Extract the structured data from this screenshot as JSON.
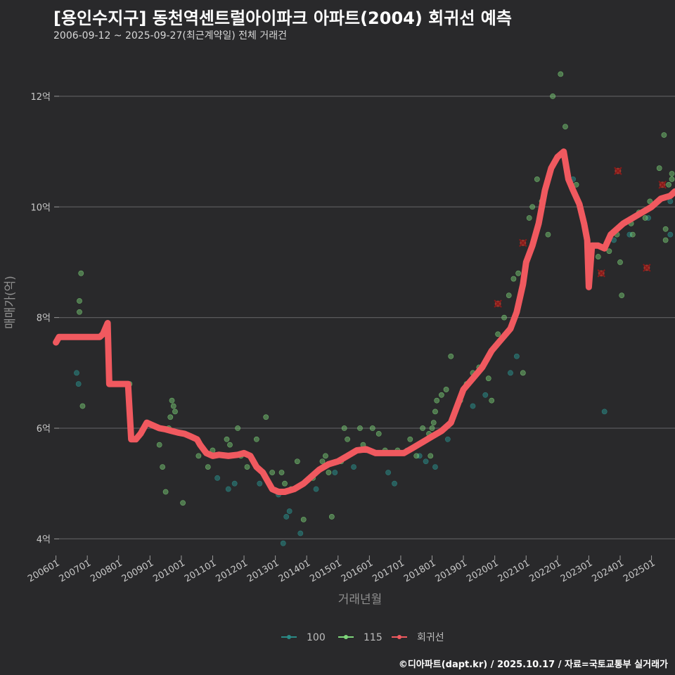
{
  "chart_data": {
    "type": "scatter",
    "title": "[용인수지구] 동천역센트럴아이파크 아파트(2004) 회귀선 예측",
    "subtitle": "2006-09-12 ~ 2025-09-27(최근계약일) 전체 거래건",
    "xlabel": "거래년월",
    "ylabel": "매매가(억)",
    "ylim": [
      3.7,
      12.85
    ],
    "xlim": [
      2005.92,
      2025.75
    ],
    "y_ticks": [
      4,
      6,
      8,
      10,
      12
    ],
    "y_tick_labels": [
      "4억",
      "6억",
      "8억",
      "10억",
      "12억"
    ],
    "x_ticks": [
      2006,
      2007,
      2008,
      2009,
      2010,
      2011,
      2012,
      2013,
      2014,
      2015,
      2016,
      2017,
      2018,
      2019,
      2020,
      2021,
      2022,
      2023,
      2024,
      2025
    ],
    "x_tick_labels": [
      "200601",
      "200701",
      "200801",
      "200901",
      "201001",
      "201101",
      "201201",
      "201301",
      "201401",
      "201501",
      "201601",
      "201701",
      "201801",
      "201901",
      "202001",
      "202101",
      "202201",
      "202301",
      "202401",
      "202501"
    ],
    "grid": true,
    "legend_position": "bottom",
    "colors": {
      "s100": "#2a8a86",
      "s115": "#7ed67a",
      "regression": "#f0595f",
      "outlier": "#8b1a1a"
    },
    "series": [
      {
        "name": "100",
        "type": "scatter",
        "points": [
          [
            2006.66,
            7.0
          ],
          [
            2006.72,
            6.8
          ],
          [
            2011.15,
            5.1
          ],
          [
            2011.5,
            4.9
          ],
          [
            2011.7,
            5.0
          ],
          [
            2012.5,
            5.0
          ],
          [
            2013.1,
            4.8
          ],
          [
            2013.35,
            4.4
          ],
          [
            2013.45,
            4.5
          ],
          [
            2013.25,
            3.92
          ],
          [
            2013.8,
            4.1
          ],
          [
            2014.3,
            4.9
          ],
          [
            2014.9,
            5.2
          ],
          [
            2015.5,
            5.3
          ],
          [
            2015.9,
            5.6
          ],
          [
            2016.6,
            5.2
          ],
          [
            2016.8,
            5.0
          ],
          [
            2017.2,
            5.6
          ],
          [
            2017.6,
            5.5
          ],
          [
            2017.8,
            5.4
          ],
          [
            2018.1,
            5.3
          ],
          [
            2018.5,
            5.8
          ],
          [
            2019.3,
            6.4
          ],
          [
            2019.7,
            6.6
          ],
          [
            2020.5,
            7.0
          ],
          [
            2020.7,
            7.3
          ],
          [
            2022.5,
            10.5
          ],
          [
            2023.5,
            6.3
          ],
          [
            2023.8,
            9.4
          ],
          [
            2024.3,
            9.5
          ],
          [
            2024.9,
            9.8
          ],
          [
            2025.6,
            9.5
          ],
          [
            2025.6,
            10.1
          ]
        ]
      },
      {
        "name": "115",
        "type": "scatter",
        "points": [
          [
            2006.8,
            8.8
          ],
          [
            2006.75,
            8.3
          ],
          [
            2006.75,
            8.1
          ],
          [
            2006.85,
            6.4
          ],
          [
            2008.35,
            6.8
          ],
          [
            2009.3,
            5.7
          ],
          [
            2009.4,
            5.3
          ],
          [
            2009.5,
            4.85
          ],
          [
            2009.65,
            6.2
          ],
          [
            2009.7,
            6.5
          ],
          [
            2009.75,
            6.4
          ],
          [
            2009.8,
            6.3
          ],
          [
            2009.6,
            6.0
          ],
          [
            2010.05,
            4.65
          ],
          [
            2010.55,
            5.5
          ],
          [
            2010.85,
            5.3
          ],
          [
            2011.0,
            5.6
          ],
          [
            2011.45,
            5.8
          ],
          [
            2011.55,
            5.7
          ],
          [
            2011.8,
            6.0
          ],
          [
            2011.9,
            5.5
          ],
          [
            2012.1,
            5.3
          ],
          [
            2012.4,
            5.8
          ],
          [
            2012.7,
            6.2
          ],
          [
            2012.9,
            5.2
          ],
          [
            2013.2,
            5.2
          ],
          [
            2013.3,
            5.0
          ],
          [
            2013.5,
            4.9
          ],
          [
            2013.7,
            5.4
          ],
          [
            2013.9,
            4.35
          ],
          [
            2014.2,
            5.1
          ],
          [
            2014.5,
            5.4
          ],
          [
            2014.6,
            5.5
          ],
          [
            2014.7,
            5.2
          ],
          [
            2014.8,
            4.4
          ],
          [
            2015.1,
            5.4
          ],
          [
            2015.2,
            6.0
          ],
          [
            2015.3,
            5.8
          ],
          [
            2015.7,
            6.0
          ],
          [
            2015.8,
            5.7
          ],
          [
            2016.1,
            6.0
          ],
          [
            2016.3,
            5.9
          ],
          [
            2016.5,
            5.6
          ],
          [
            2016.9,
            5.6
          ],
          [
            2017.3,
            5.8
          ],
          [
            2017.5,
            5.5
          ],
          [
            2017.7,
            6.0
          ],
          [
            2017.9,
            5.9
          ],
          [
            2017.95,
            5.5
          ],
          [
            2018.0,
            6.0
          ],
          [
            2018.05,
            6.1
          ],
          [
            2018.1,
            6.3
          ],
          [
            2018.15,
            6.5
          ],
          [
            2018.3,
            6.6
          ],
          [
            2018.45,
            6.7
          ],
          [
            2018.6,
            7.3
          ],
          [
            2018.9,
            6.5
          ],
          [
            2019.1,
            6.8
          ],
          [
            2019.3,
            7.0
          ],
          [
            2019.5,
            7.1
          ],
          [
            2019.8,
            6.9
          ],
          [
            2019.9,
            6.5
          ],
          [
            2020.1,
            7.7
          ],
          [
            2020.3,
            8.0
          ],
          [
            2020.45,
            8.4
          ],
          [
            2020.6,
            8.7
          ],
          [
            2020.75,
            8.8
          ],
          [
            2020.85,
            8.5
          ],
          [
            2020.9,
            7.0
          ],
          [
            2021.1,
            9.8
          ],
          [
            2021.2,
            10.0
          ],
          [
            2021.35,
            10.5
          ],
          [
            2021.5,
            10.1
          ],
          [
            2021.7,
            9.5
          ],
          [
            2021.85,
            12.0
          ],
          [
            2022.1,
            12.4
          ],
          [
            2022.25,
            11.45
          ],
          [
            2022.6,
            10.4
          ],
          [
            2023.3,
            9.1
          ],
          [
            2023.65,
            9.2
          ],
          [
            2023.9,
            9.5
          ],
          [
            2024.0,
            9.0
          ],
          [
            2024.05,
            8.4
          ],
          [
            2024.35,
            9.7
          ],
          [
            2024.4,
            9.5
          ],
          [
            2024.6,
            9.9
          ],
          [
            2024.8,
            9.8
          ],
          [
            2024.95,
            10.1
          ],
          [
            2025.25,
            10.7
          ],
          [
            2025.4,
            11.3
          ],
          [
            2025.45,
            9.6
          ],
          [
            2025.45,
            9.4
          ],
          [
            2025.65,
            10.6
          ],
          [
            2025.65,
            10.5
          ],
          [
            2025.55,
            10.4
          ]
        ]
      },
      {
        "name": "회귀선",
        "type": "line",
        "points": [
          [
            2006.0,
            7.55
          ],
          [
            2006.1,
            7.65
          ],
          [
            2007.0,
            7.65
          ],
          [
            2007.4,
            7.65
          ],
          [
            2007.5,
            7.7
          ],
          [
            2007.65,
            7.9
          ],
          [
            2007.7,
            6.8
          ],
          [
            2008.0,
            6.8
          ],
          [
            2008.3,
            6.8
          ],
          [
            2008.4,
            5.8
          ],
          [
            2008.55,
            5.8
          ],
          [
            2008.7,
            5.9
          ],
          [
            2008.9,
            6.1
          ],
          [
            2009.1,
            6.05
          ],
          [
            2009.3,
            6.0
          ],
          [
            2009.5,
            5.98
          ],
          [
            2009.7,
            5.95
          ],
          [
            2009.9,
            5.92
          ],
          [
            2010.1,
            5.9
          ],
          [
            2010.3,
            5.85
          ],
          [
            2010.5,
            5.8
          ],
          [
            2010.6,
            5.7
          ],
          [
            2010.8,
            5.55
          ],
          [
            2011.0,
            5.5
          ],
          [
            2011.2,
            5.52
          ],
          [
            2011.5,
            5.5
          ],
          [
            2011.8,
            5.52
          ],
          [
            2012.0,
            5.55
          ],
          [
            2012.2,
            5.5
          ],
          [
            2012.4,
            5.3
          ],
          [
            2012.6,
            5.2
          ],
          [
            2012.8,
            5.0
          ],
          [
            2012.9,
            4.9
          ],
          [
            2013.1,
            4.85
          ],
          [
            2013.3,
            4.85
          ],
          [
            2013.6,
            4.9
          ],
          [
            2013.9,
            5.0
          ],
          [
            2014.1,
            5.1
          ],
          [
            2014.4,
            5.25
          ],
          [
            2014.7,
            5.35
          ],
          [
            2015.0,
            5.4
          ],
          [
            2015.3,
            5.5
          ],
          [
            2015.6,
            5.6
          ],
          [
            2015.9,
            5.62
          ],
          [
            2016.2,
            5.55
          ],
          [
            2016.5,
            5.55
          ],
          [
            2016.8,
            5.55
          ],
          [
            2017.1,
            5.55
          ],
          [
            2017.4,
            5.65
          ],
          [
            2017.7,
            5.75
          ],
          [
            2018.0,
            5.85
          ],
          [
            2018.3,
            5.95
          ],
          [
            2018.6,
            6.1
          ],
          [
            2018.8,
            6.4
          ],
          [
            2019.0,
            6.7
          ],
          [
            2019.3,
            6.9
          ],
          [
            2019.6,
            7.1
          ],
          [
            2019.9,
            7.4
          ],
          [
            2020.2,
            7.6
          ],
          [
            2020.5,
            7.8
          ],
          [
            2020.7,
            8.1
          ],
          [
            2020.9,
            8.6
          ],
          [
            2021.0,
            9.0
          ],
          [
            2021.2,
            9.3
          ],
          [
            2021.4,
            9.7
          ],
          [
            2021.6,
            10.3
          ],
          [
            2021.8,
            10.7
          ],
          [
            2022.0,
            10.9
          ],
          [
            2022.2,
            11.0
          ],
          [
            2022.35,
            10.5
          ],
          [
            2022.5,
            10.3
          ],
          [
            2022.7,
            10.05
          ],
          [
            2022.85,
            9.7
          ],
          [
            2022.95,
            9.4
          ],
          [
            2023.0,
            8.55
          ],
          [
            2023.1,
            9.3
          ],
          [
            2023.3,
            9.3
          ],
          [
            2023.5,
            9.25
          ],
          [
            2023.7,
            9.5
          ],
          [
            2023.9,
            9.6
          ],
          [
            2024.1,
            9.7
          ],
          [
            2024.4,
            9.8
          ],
          [
            2024.7,
            9.9
          ],
          [
            2025.0,
            10.0
          ],
          [
            2025.3,
            10.15
          ],
          [
            2025.6,
            10.2
          ],
          [
            2025.75,
            10.28
          ]
        ]
      },
      {
        "name": "outliers",
        "type": "marker",
        "points": [
          [
            2020.1,
            8.25
          ],
          [
            2020.9,
            9.35
          ],
          [
            2023.4,
            8.8
          ],
          [
            2023.93,
            10.65
          ],
          [
            2024.85,
            8.9
          ],
          [
            2025.35,
            10.4
          ]
        ]
      }
    ],
    "legend": [
      "100",
      "115",
      "회귀선"
    ]
  },
  "credit": "©디아파트(dapt.kr) / 2025.10.17 / 자료=국토교통부 실거래가"
}
